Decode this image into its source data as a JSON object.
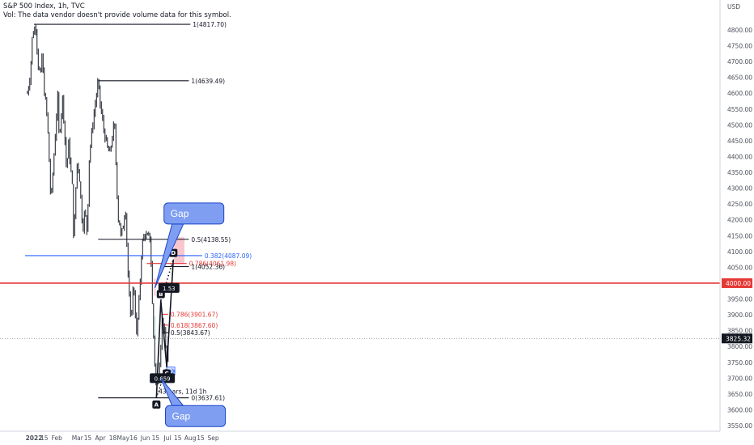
{
  "header": {
    "title": "S&P 500 Index, 1h, TVC",
    "subtitle": "Vol: The data vendor doesn't provide volume data for this symbol."
  },
  "colors": {
    "background": "#ffffff",
    "candle": "#131722",
    "red": "#e53935",
    "blue": "#2962ff",
    "balloon_fill": "#7f9ef2",
    "balloon_stroke": "#1a44c9",
    "pink_zone": "#f8c7ce",
    "green_zone": "#cfe9d9",
    "projection": "#d6e0ff",
    "axis_text": "#4a4e59",
    "badge_bg": "#131722"
  },
  "chart_data": {
    "type": "candlestick",
    "symbol": "S&P 500 Index",
    "interval": "1h",
    "source": "TVC",
    "y_axis": {
      "unit": "USD",
      "range": [
        3520,
        4845
      ],
      "ticks": [
        3550,
        3600,
        3650,
        3700,
        3750,
        3800,
        3850,
        3900,
        3950,
        4000,
        4050,
        4100,
        4150,
        4200,
        4250,
        4300,
        4350,
        4400,
        4450,
        4500,
        4550,
        4600,
        4650,
        4700,
        4750,
        4800
      ],
      "tick_labels": [
        "3550.00",
        "3600.00",
        "3650.00",
        "3700.00",
        "3750.00",
        "3800.00",
        "3850.00",
        "3900.00",
        "3950.00",
        "4000.00",
        "4050.00",
        "4100.00",
        "4150.00",
        "4200.00",
        "4250.00",
        "4300.00",
        "4350.00",
        "4400.00",
        "4450.00",
        "4500.00",
        "4550.00",
        "4600.00",
        "4650.00",
        "4700.00",
        "4750.00",
        "4800.00"
      ]
    },
    "x_axis": {
      "ticks": [
        {
          "date": "2022-01-01",
          "label": "2022",
          "bold": true
        },
        {
          "date": "2022-01-15",
          "label": "15"
        },
        {
          "date": "2022-02-01",
          "label": "Feb"
        },
        {
          "date": "2022-03-01",
          "label": "Mar"
        },
        {
          "date": "2022-03-15",
          "label": "15"
        },
        {
          "date": "2022-04-01",
          "label": "Apr"
        },
        {
          "date": "2022-04-18",
          "label": "18"
        },
        {
          "date": "2022-05-02",
          "label": "May"
        },
        {
          "date": "2022-05-16",
          "label": "16"
        },
        {
          "date": "2022-06-01",
          "label": "Jun"
        },
        {
          "date": "2022-06-15",
          "label": "15"
        },
        {
          "date": "2022-07-01",
          "label": "Jul"
        },
        {
          "date": "2022-07-15",
          "label": "15"
        },
        {
          "date": "2022-08-01",
          "label": "Aug"
        },
        {
          "date": "2022-08-15",
          "label": "15"
        },
        {
          "date": "2022-09-01",
          "label": "Sep"
        }
      ]
    },
    "price_path": [
      [
        "2021-12-23",
        4600
      ],
      [
        "2021-12-27",
        4660
      ],
      [
        "2021-12-30",
        4790
      ],
      [
        "2022-01-04",
        4812
      ],
      [
        "2022-01-06",
        4700
      ],
      [
        "2022-01-10",
        4650
      ],
      [
        "2022-01-12",
        4730
      ],
      [
        "2022-01-14",
        4630
      ],
      [
        "2022-01-19",
        4520
      ],
      [
        "2022-01-21",
        4420
      ],
      [
        "2022-01-24",
        4250
      ],
      [
        "2022-01-27",
        4360
      ],
      [
        "2022-02-02",
        4590
      ],
      [
        "2022-02-04",
        4460
      ],
      [
        "2022-02-09",
        4590
      ],
      [
        "2022-02-14",
        4360
      ],
      [
        "2022-02-17",
        4440
      ],
      [
        "2022-02-22",
        4300
      ],
      [
        "2022-02-24",
        4120
      ],
      [
        "2022-02-28",
        4380
      ],
      [
        "2022-03-03",
        4360
      ],
      [
        "2022-03-08",
        4170
      ],
      [
        "2022-03-11",
        4230
      ],
      [
        "2022-03-14",
        4160
      ],
      [
        "2022-03-17",
        4400
      ],
      [
        "2022-03-22",
        4510
      ],
      [
        "2022-03-29",
        4637
      ],
      [
        "2022-04-01",
        4560
      ],
      [
        "2022-04-06",
        4480
      ],
      [
        "2022-04-11",
        4420
      ],
      [
        "2022-04-14",
        4410
      ],
      [
        "2022-04-20",
        4510
      ],
      [
        "2022-04-25",
        4210
      ],
      [
        "2022-04-27",
        4190
      ],
      [
        "2022-04-29",
        4140
      ],
      [
        "2022-05-03",
        4200
      ],
      [
        "2022-05-05",
        4250
      ],
      [
        "2022-05-09",
        4000
      ],
      [
        "2022-05-12",
        3880
      ],
      [
        "2022-05-16",
        4000
      ],
      [
        "2022-05-18",
        3930
      ],
      [
        "2022-05-20",
        3830
      ],
      [
        "2022-05-24",
        3960
      ],
      [
        "2022-05-27",
        4110
      ],
      [
        "2022-05-31",
        4160
      ],
      [
        "2022-06-03",
        4140
      ],
      [
        "2022-06-07",
        4150
      ],
      [
        "2022-06-09",
        4060
      ],
      [
        "2022-06-10",
        3960
      ],
      [
        "2022-06-13",
        3780
      ],
      [
        "2022-06-16",
        3660
      ],
      [
        "2022-06-17",
        3680
      ],
      [
        "2022-06-21",
        3770
      ],
      [
        "2022-06-24",
        3900
      ],
      [
        "2022-06-28",
        3810
      ],
      [
        "2022-06-30",
        3750
      ],
      [
        "2022-07-01",
        3800
      ],
      [
        "2022-07-02",
        3825
      ]
    ],
    "horizontal_levels": [
      {
        "price": 4817.7,
        "label": "1(4817.70)",
        "from": "2022-01-01",
        "to": "2022-08-01",
        "color": "#131722"
      },
      {
        "price": 4639.49,
        "label": "1(4639.49)",
        "from": "2022-03-29",
        "to": "2022-07-30",
        "color": "#131722"
      },
      {
        "price": 4138.55,
        "label": "0.5(4138.55)",
        "from": "2022-03-29",
        "to": "2022-07-30",
        "color": "#131722"
      },
      {
        "price": 4087.09,
        "label": "0.382(4087.09)",
        "from": "2021-12-20",
        "to": "2022-08-17",
        "color": "#2962ff"
      },
      {
        "price": 4061.98,
        "label": "0.786(4061.98)",
        "from": "2022-06-03",
        "to": "2022-07-27",
        "color": "#e53935"
      },
      {
        "price": 4052.36,
        "label": "1(4052.36)",
        "from": "2022-06-23",
        "to": "2022-07-30",
        "color": "#131722"
      },
      {
        "price": 3901.67,
        "label": "0.786(3901.67)",
        "from": "2022-06-24",
        "to": "2022-07-02",
        "color": "#e53935"
      },
      {
        "price": 3867.6,
        "label": "0.618(3867.60)",
        "from": "2022-06-24",
        "to": "2022-07-02",
        "color": "#e53935"
      },
      {
        "price": 3843.67,
        "label": "0.5(3843.67)",
        "from": "2022-06-24",
        "to": "2022-07-02",
        "color": "#131722"
      },
      {
        "price": 3637.61,
        "label": "0(3637.61)",
        "from": "2022-03-29",
        "to": "2022-07-30",
        "color": "#131722"
      }
    ],
    "support_line": {
      "price": 4000,
      "label": "4000.00",
      "color": "#e53935"
    },
    "current_price": {
      "price": 3825.32,
      "label": "3825.32"
    },
    "harmonic_pattern": {
      "points": [
        {
          "label": "A",
          "date": "2022-06-16",
          "price": 3637
        },
        {
          "label": "B",
          "date": "2022-06-22",
          "price": 3945
        },
        {
          "label": "C",
          "date": "2022-06-30",
          "price": 3735
        },
        {
          "label": "D",
          "date": "2022-07-09",
          "price": 4075
        }
      ],
      "ratios": [
        {
          "label": "0.659",
          "date": "2022-06-24",
          "price": 3700
        },
        {
          "label": "1.53",
          "date": "2022-07-03",
          "price": 3985
        }
      ]
    },
    "date_range_note": {
      "label": "43 bars, 11d 1h",
      "from": "2022-06-30",
      "to": "2022-07-11",
      "price": 3722
    },
    "annotations": [
      {
        "label": "Gap",
        "date": "2022-06-23",
        "price": 4220
      },
      {
        "label": "Gap",
        "date": "2022-06-25",
        "price": 3580
      }
    ],
    "zones": [
      {
        "kind": "pink",
        "from": "2022-06-13",
        "to": "2022-06-15",
        "top": 4015,
        "bottom": 3960
      },
      {
        "kind": "green",
        "from": "2022-06-13",
        "to": "2022-06-15",
        "top": 3895,
        "bottom": 3825
      },
      {
        "kind": "pink",
        "from": "2022-07-10",
        "to": "2022-07-24",
        "top": 4145,
        "bottom": 4060
      }
    ]
  }
}
